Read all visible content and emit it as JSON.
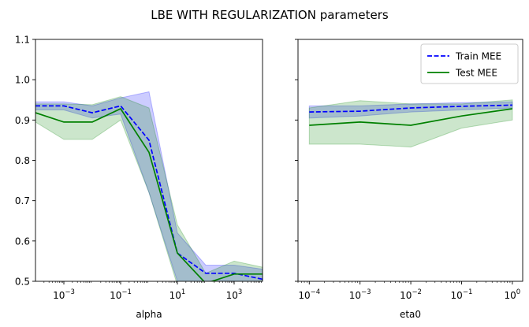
{
  "figure": {
    "title": "LBE WITH REGULARIZATION parameters"
  },
  "colors": {
    "train": "#0000ff",
    "test": "#008000",
    "train_band": "#0000ff",
    "test_band": "#008000"
  },
  "chart_data": [
    {
      "type": "line",
      "xlabel": "alpha",
      "ylabel": "",
      "xscale": "log",
      "xlim": [
        0.0001,
        10000
      ],
      "ylim": [
        0.5,
        1.1
      ],
      "ytick_labels": [
        "0.5",
        "0.6",
        "0.7",
        "0.8",
        "0.9",
        "1.0",
        "1.1"
      ],
      "yticks": [
        0.5,
        0.6,
        0.7,
        0.8,
        0.9,
        1.0,
        1.1
      ],
      "xticks": [
        0.001,
        0.1,
        10,
        1000
      ],
      "xtick_labels": [
        {
          "base": "10",
          "exp": "−3"
        },
        {
          "base": "10",
          "exp": "−1"
        },
        {
          "base": "10",
          "exp": "1"
        },
        {
          "base": "10",
          "exp": "3"
        }
      ],
      "x": [
        0.0001,
        0.001,
        0.01,
        0.1,
        1,
        10,
        100,
        1000,
        10000
      ],
      "series": [
        {
          "name": "Train MEE",
          "style": "dashed",
          "values": [
            0.935,
            0.935,
            0.918,
            0.935,
            0.85,
            0.57,
            0.52,
            0.52,
            0.505
          ],
          "lower": [
            0.925,
            0.925,
            0.905,
            0.915,
            0.72,
            0.5,
            0.5,
            0.5,
            0.5
          ],
          "upper": [
            0.945,
            0.945,
            0.935,
            0.955,
            0.97,
            0.62,
            0.54,
            0.54,
            0.53
          ]
        },
        {
          "name": "Test MEE",
          "style": "solid",
          "values": [
            0.918,
            0.895,
            0.895,
            0.928,
            0.82,
            0.57,
            0.495,
            0.518,
            0.518
          ],
          "lower": [
            0.895,
            0.852,
            0.852,
            0.9,
            0.72,
            0.49,
            0.48,
            0.5,
            0.5
          ],
          "upper": [
            0.94,
            0.94,
            0.938,
            0.958,
            0.93,
            0.64,
            0.52,
            0.55,
            0.535
          ]
        }
      ]
    },
    {
      "type": "line",
      "xlabel": "eta0",
      "ylabel": "",
      "xscale": "log",
      "xlim": [
        6e-05,
        1.6
      ],
      "ylim": [
        0.5,
        1.1
      ],
      "yticks": [
        0.5,
        0.6,
        0.7,
        0.8,
        0.9,
        1.0,
        1.1
      ],
      "xticks": [
        0.0001,
        0.001,
        0.01,
        0.1,
        1
      ],
      "xtick_labels": [
        {
          "base": "10",
          "exp": "−4"
        },
        {
          "base": "10",
          "exp": "−3"
        },
        {
          "base": "10",
          "exp": "−2"
        },
        {
          "base": "10",
          "exp": "−1"
        },
        {
          "base": "10",
          "exp": "0"
        }
      ],
      "x": [
        0.0001,
        0.001,
        0.01,
        0.1,
        1
      ],
      "legend": {
        "location": "upper right",
        "entries": [
          "Train MEE",
          "Test MEE"
        ]
      },
      "series": [
        {
          "name": "Train MEE",
          "style": "dashed",
          "values": [
            0.92,
            0.922,
            0.93,
            0.934,
            0.937
          ],
          "lower": [
            0.905,
            0.91,
            0.92,
            0.925,
            0.93
          ],
          "upper": [
            0.935,
            0.935,
            0.94,
            0.943,
            0.945
          ]
        },
        {
          "name": "Test MEE",
          "style": "solid",
          "values": [
            0.887,
            0.895,
            0.887,
            0.91,
            0.928
          ],
          "lower": [
            0.84,
            0.84,
            0.833,
            0.88,
            0.9
          ],
          "upper": [
            0.93,
            0.948,
            0.94,
            0.94,
            0.95
          ]
        }
      ]
    }
  ]
}
